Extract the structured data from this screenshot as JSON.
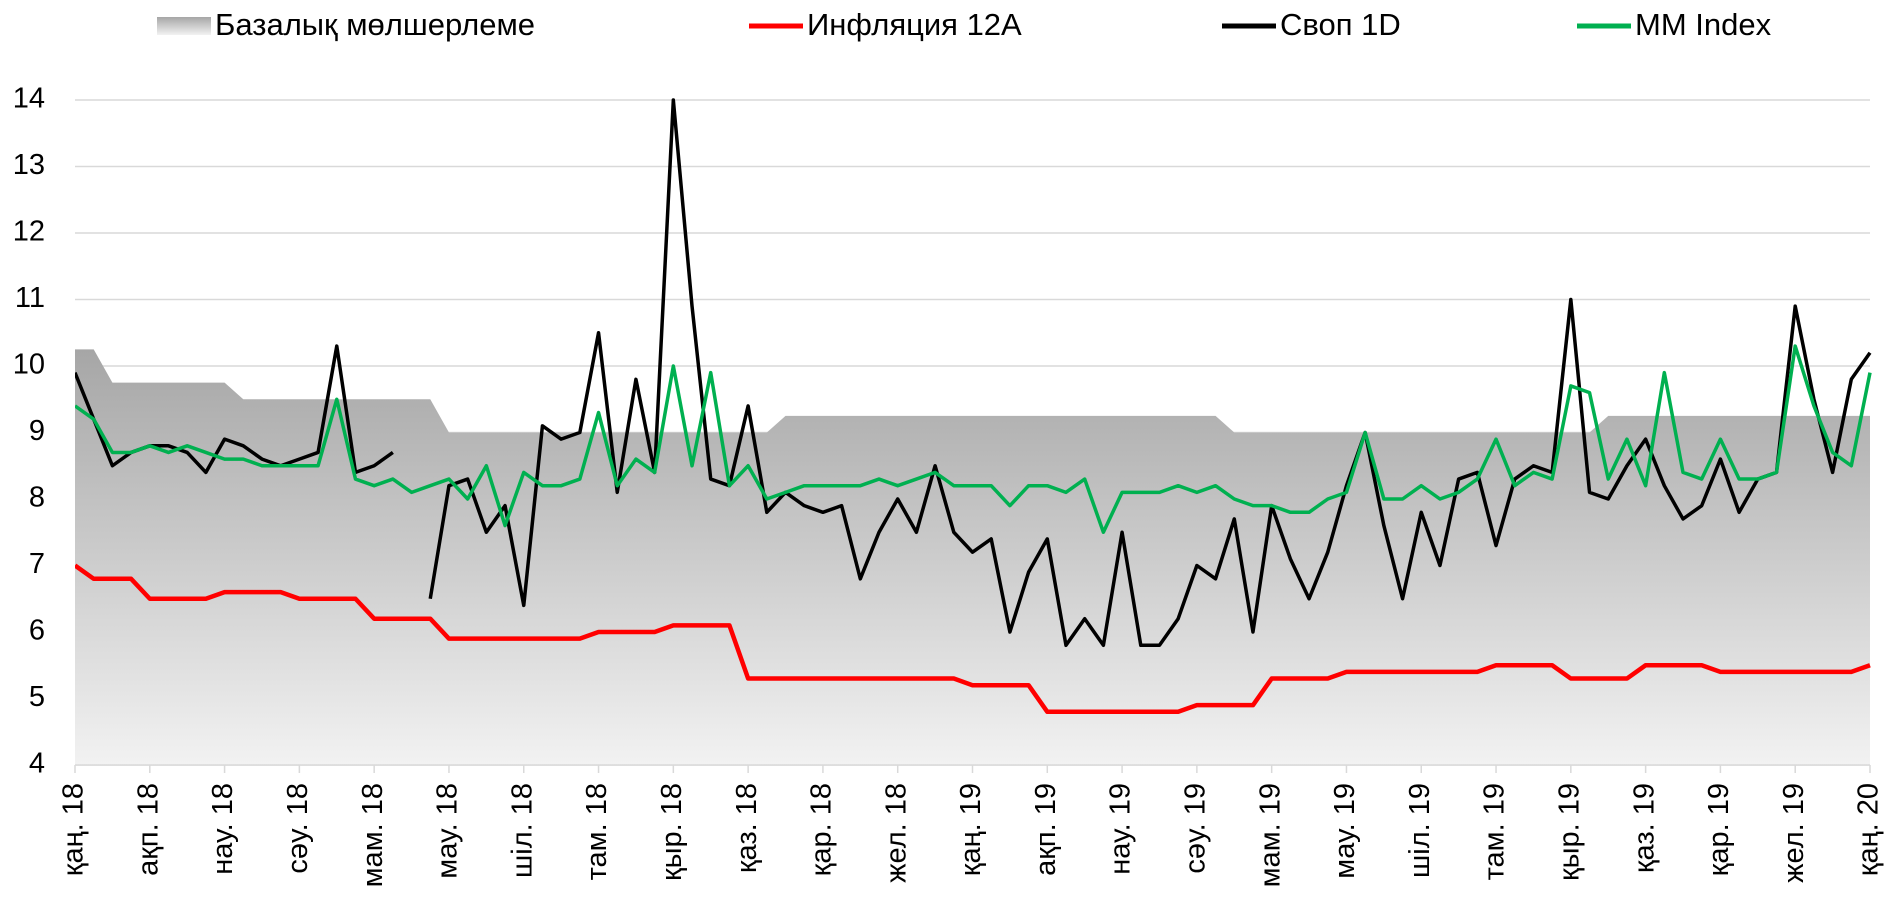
{
  "chart_data": {
    "type": "line",
    "categories": [
      "қаң. 18",
      null,
      null,
      null,
      "ақп. 18",
      null,
      null,
      null,
      "нау. 18",
      null,
      null,
      null,
      "сәу. 18",
      null,
      null,
      null,
      "мам. 18",
      null,
      null,
      null,
      "мау. 18",
      null,
      null,
      null,
      "шіл. 18",
      null,
      null,
      null,
      "там. 18",
      null,
      null,
      null,
      "қыр. 18",
      null,
      null,
      null,
      "қаз. 18",
      null,
      null,
      null,
      "қар. 18",
      null,
      null,
      null,
      "жел. 18",
      null,
      null,
      null,
      "қаң. 19",
      null,
      null,
      null,
      "ақп. 19",
      null,
      null,
      null,
      "нау. 19",
      null,
      null,
      null,
      "сәу. 19",
      null,
      null,
      null,
      "мам. 19",
      null,
      null,
      null,
      "мау. 19",
      null,
      null,
      null,
      "шіл. 19",
      null,
      null,
      null,
      "там. 19",
      null,
      null,
      null,
      "қыр. 19",
      null,
      null,
      null,
      "қаз. 19",
      null,
      null,
      null,
      "қар. 19",
      null,
      null,
      null,
      "жел. 19",
      null,
      null,
      null,
      "қаң. 20"
    ],
    "ylim": [
      4,
      14
    ],
    "yticks": [
      4,
      5,
      6,
      7,
      8,
      9,
      10,
      11,
      12,
      13,
      14
    ],
    "grid": true,
    "legend": "top",
    "series": [
      {
        "name": "Базалық мөлшерлеме",
        "type": "area",
        "color": "#a6a6a6",
        "values": [
          10.25,
          10.25,
          9.75,
          9.75,
          9.75,
          9.75,
          9.75,
          9.75,
          9.75,
          9.5,
          9.5,
          9.5,
          9.5,
          9.5,
          9.5,
          9.5,
          9.5,
          9.5,
          9.5,
          9.5,
          9.0,
          9.0,
          9.0,
          9.0,
          9.0,
          9.0,
          9.0,
          9.0,
          9.0,
          9.0,
          9.0,
          9.0,
          9.0,
          9.0,
          9.0,
          9.0,
          9.0,
          9.0,
          9.25,
          9.25,
          9.25,
          9.25,
          9.25,
          9.25,
          9.25,
          9.25,
          9.25,
          9.25,
          9.25,
          9.25,
          9.25,
          9.25,
          9.25,
          9.25,
          9.25,
          9.25,
          9.25,
          9.25,
          9.25,
          9.25,
          9.25,
          9.25,
          9.0,
          9.0,
          9.0,
          9.0,
          9.0,
          9.0,
          9.0,
          9.0,
          9.0,
          9.0,
          9.0,
          9.0,
          9.0,
          9.0,
          9.0,
          9.0,
          9.0,
          9.0,
          9.0,
          9.0,
          9.25,
          9.25,
          9.25,
          9.25,
          9.25,
          9.25,
          9.25,
          9.25,
          9.25,
          9.25,
          9.25,
          9.25,
          9.25,
          9.25,
          9.25
        ]
      },
      {
        "name": "Инфляция 12А",
        "type": "line",
        "color": "#ff0000",
        "values": [
          7.0,
          6.8,
          6.8,
          6.8,
          6.5,
          6.5,
          6.5,
          6.5,
          6.6,
          6.6,
          6.6,
          6.6,
          6.5,
          6.5,
          6.5,
          6.5,
          6.2,
          6.2,
          6.2,
          6.2,
          5.9,
          5.9,
          5.9,
          5.9,
          5.9,
          5.9,
          5.9,
          5.9,
          6.0,
          6.0,
          6.0,
          6.0,
          6.1,
          6.1,
          6.1,
          6.1,
          5.3,
          5.3,
          5.3,
          5.3,
          5.3,
          5.3,
          5.3,
          5.3,
          5.3,
          5.3,
          5.3,
          5.3,
          5.2,
          5.2,
          5.2,
          5.2,
          4.8,
          4.8,
          4.8,
          4.8,
          4.8,
          4.8,
          4.8,
          4.8,
          4.9,
          4.9,
          4.9,
          4.9,
          5.3,
          5.3,
          5.3,
          5.3,
          5.4,
          5.4,
          5.4,
          5.4,
          5.4,
          5.4,
          5.4,
          5.4,
          5.5,
          5.5,
          5.5,
          5.5,
          5.3,
          5.3,
          5.3,
          5.3,
          5.5,
          5.5,
          5.5,
          5.5,
          5.4,
          5.4,
          5.4,
          5.4,
          5.4,
          5.4,
          5.4,
          5.4,
          5.5
        ]
      },
      {
        "name": "Своп 1D",
        "type": "line",
        "color": "#000000",
        "values": [
          9.9,
          9.2,
          8.5,
          8.7,
          8.8,
          8.8,
          8.7,
          8.4,
          8.9,
          8.8,
          8.6,
          8.5,
          8.6,
          8.7,
          10.3,
          8.4,
          8.5,
          8.7,
          null,
          6.5,
          8.2,
          8.3,
          7.5,
          7.9,
          6.4,
          9.1,
          8.9,
          9.0,
          10.5,
          8.1,
          9.8,
          8.4,
          14.0,
          10.9,
          8.3,
          8.2,
          9.4,
          7.8,
          8.1,
          7.9,
          7.8,
          7.9,
          6.8,
          7.5,
          8.0,
          7.5,
          8.5,
          7.5,
          7.2,
          7.4,
          6.0,
          6.9,
          7.4,
          5.8,
          6.2,
          5.8,
          7.5,
          5.8,
          5.8,
          6.2,
          7.0,
          6.8,
          7.7,
          6.0,
          7.9,
          7.1,
          6.5,
          7.2,
          8.2,
          9.0,
          7.6,
          6.5,
          7.8,
          7.0,
          8.3,
          8.4,
          7.3,
          8.3,
          8.5,
          8.4,
          11.0,
          8.1,
          8.0,
          8.5,
          8.9,
          8.2,
          7.7,
          7.9,
          8.6,
          7.8,
          8.3,
          8.4,
          10.9,
          9.5,
          8.4,
          9.8,
          10.2
        ]
      },
      {
        "name": "MM Index",
        "type": "line",
        "color": "#00b050",
        "values": [
          9.4,
          9.2,
          8.7,
          8.7,
          8.8,
          8.7,
          8.8,
          8.7,
          8.6,
          8.6,
          8.5,
          8.5,
          8.5,
          8.5,
          9.5,
          8.3,
          8.2,
          8.3,
          8.1,
          8.2,
          8.3,
          8.0,
          8.5,
          7.6,
          8.4,
          8.2,
          8.2,
          8.3,
          9.3,
          8.2,
          8.6,
          8.4,
          10.0,
          8.5,
          9.9,
          8.2,
          8.5,
          8.0,
          8.1,
          8.2,
          8.2,
          8.2,
          8.2,
          8.3,
          8.2,
          8.3,
          8.4,
          8.2,
          8.2,
          8.2,
          7.9,
          8.2,
          8.2,
          8.1,
          8.3,
          7.5,
          8.1,
          8.1,
          8.1,
          8.2,
          8.1,
          8.2,
          8.0,
          7.9,
          7.9,
          7.8,
          7.8,
          8.0,
          8.1,
          9.0,
          8.0,
          8.0,
          8.2,
          8.0,
          8.1,
          8.3,
          8.9,
          8.2,
          8.4,
          8.3,
          9.7,
          9.6,
          8.3,
          8.9,
          8.2,
          9.9,
          8.4,
          8.3,
          8.9,
          8.3,
          8.3,
          8.4,
          10.3,
          9.4,
          8.7,
          8.5,
          9.9
        ]
      }
    ]
  }
}
